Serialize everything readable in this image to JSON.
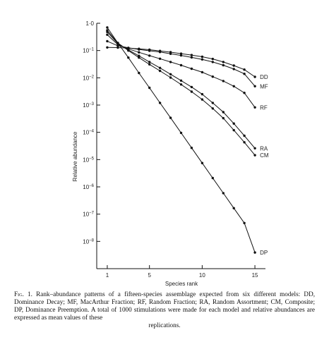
{
  "chart_data": {
    "type": "line",
    "xlabel": "Species rank",
    "ylabel": "Relative abundance",
    "x_ticks": [
      1,
      5,
      10,
      15
    ],
    "y_ticks": [
      {
        "exp": 0,
        "label": "1·0"
      },
      {
        "exp": -1,
        "label": "10",
        "sup": "−1"
      },
      {
        "exp": -2,
        "label": "10",
        "sup": "−2"
      },
      {
        "exp": -3,
        "label": "10",
        "sup": "−3"
      },
      {
        "exp": -4,
        "label": "10",
        "sup": "−4"
      },
      {
        "exp": -5,
        "label": "10",
        "sup": "−5"
      },
      {
        "exp": -6,
        "label": "10",
        "sup": "−6"
      },
      {
        "exp": -7,
        "label": "10",
        "sup": "−7"
      },
      {
        "exp": -8,
        "label": "10",
        "sup": "−8"
      }
    ],
    "xlim": [
      0,
      16
    ],
    "ylim": [
      -9,
      0
    ],
    "yscale": "log",
    "x": [
      1,
      2,
      3,
      4,
      5,
      6,
      7,
      8,
      9,
      10,
      11,
      12,
      13,
      14,
      15
    ],
    "series": [
      {
        "name": "DD",
        "values": [
          0.13,
          0.128,
          0.123,
          0.116,
          0.107,
          0.097,
          0.087,
          0.077,
          0.068,
          0.059,
          0.049,
          0.038,
          0.028,
          0.02,
          0.0108
        ]
      },
      {
        "name": "MF",
        "values": [
          0.22,
          0.15,
          0.126,
          0.11,
          0.098,
          0.088,
          0.076,
          0.066,
          0.056,
          0.047,
          0.038,
          0.029,
          0.021,
          0.014,
          0.0049
        ]
      },
      {
        "name": "RF",
        "values": [
          0.38,
          0.165,
          0.115,
          0.086,
          0.065,
          0.05,
          0.038,
          0.029,
          0.0215,
          0.016,
          0.011,
          0.0076,
          0.0049,
          0.0028,
          0.00082
        ]
      },
      {
        "name": "RA",
        "values": [
          0.48,
          0.18,
          0.105,
          0.064,
          0.038,
          0.023,
          0.0135,
          0.0079,
          0.0046,
          0.0025,
          0.0012,
          0.00055,
          0.00021,
          7.5e-05,
          2.6e-05
        ]
      },
      {
        "name": "CM",
        "values": [
          0.55,
          0.19,
          0.1,
          0.055,
          0.031,
          0.018,
          0.0102,
          0.0057,
          0.0031,
          0.0016,
          0.00075,
          0.00033,
          0.00012,
          4.3e-05,
          1.45e-05
        ]
      },
      {
        "name": "DP",
        "values": [
          0.7,
          0.19,
          0.055,
          0.015,
          0.0043,
          0.0012,
          0.00034,
          9.55e-05,
          2.7e-05,
          7.5e-06,
          2.1e-06,
          5.9e-07,
          1.66e-07,
          4.7e-08,
          3.9e-09
        ]
      }
    ]
  },
  "caption": {
    "fig_label": "Fig. 1.",
    "text": "Rank–abundance patterns of a fifteen-species assemblage expected from six different models: DD, Dominance Decay; MF, MacArthur Fraction; RF, Random Fraction; RA, Random Assortment; CM, Composite; DP, Dominance Preemption. A total of 1000 stimulations were made for each model and relative abundances are expressed as mean values of these",
    "last_line": "replications."
  }
}
